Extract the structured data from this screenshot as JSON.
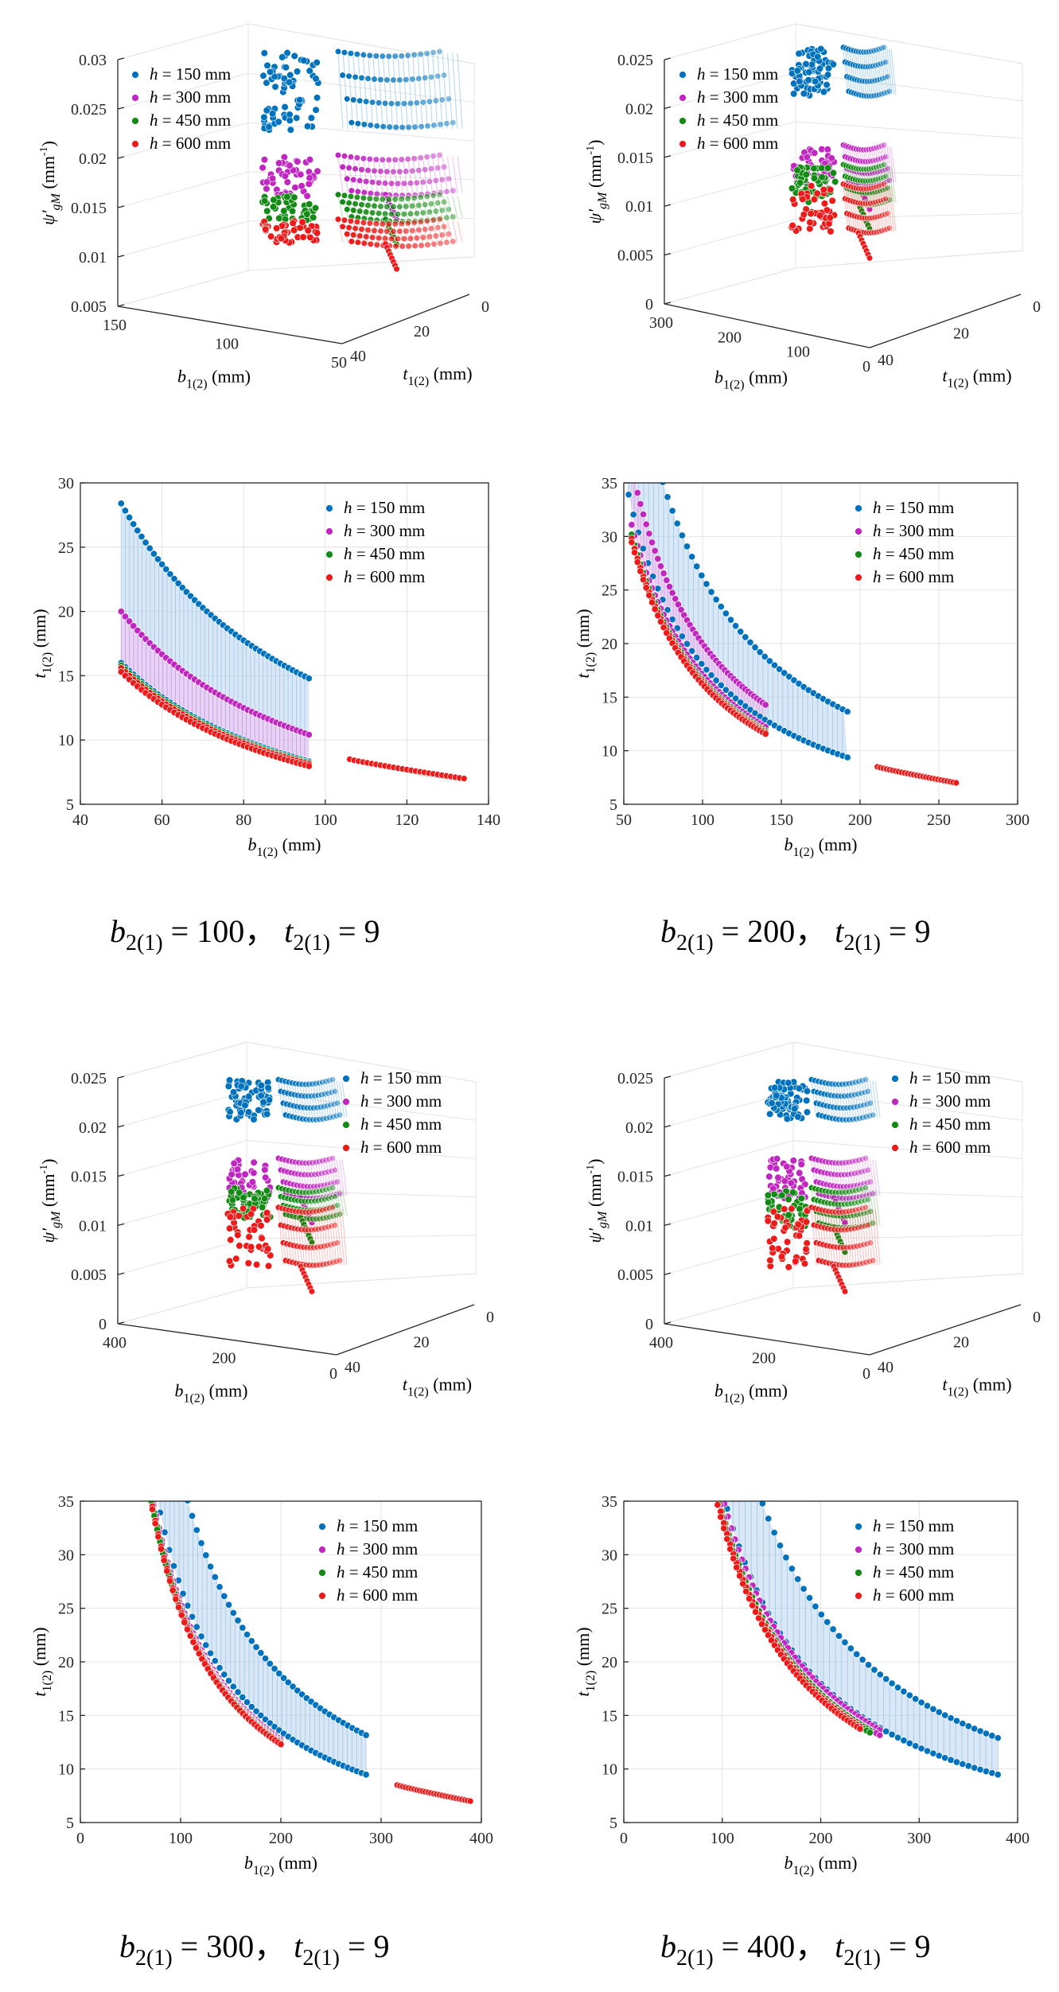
{
  "colors": {
    "c150": "#0072BD",
    "c300": "#C026C0",
    "c450": "#138A13",
    "c600": "#EE1A1A",
    "fill150": "#b9d4ee",
    "fill300": "#f3c3f3",
    "fill450": "#cfe8cf",
    "fill600": "#f8c8c8"
  },
  "legend": [
    "h = 150 mm",
    "h = 300 mm",
    "h = 450 mm",
    "h = 600 mm"
  ],
  "legend_parts": [
    {
      "sym": "h",
      "rest": " = 150 mm"
    },
    {
      "sym": "h",
      "rest": " = 300 mm"
    },
    {
      "sym": "h",
      "rest": " = 450 mm"
    },
    {
      "sym": "h",
      "rest": " = 600 mm"
    }
  ],
  "captions": [
    {
      "b": "b",
      "bsub": "2(1)",
      "bval": "= 100，",
      "t": "t",
      "tsub": "2(1)",
      "tval": "= 9"
    },
    {
      "b": "b",
      "bsub": "2(1)",
      "bval": "= 200，",
      "t": "t",
      "tsub": "2(1)",
      "tval": "= 9"
    },
    {
      "b": "b",
      "bsub": "2(1)",
      "bval": "= 300，",
      "t": "t",
      "tsub": "2(1)",
      "tval": "= 9"
    },
    {
      "b": "b",
      "bsub": "2(1)",
      "bval": "= 400，",
      "t": "t",
      "tsub": "2(1)",
      "tval": "= 9"
    }
  ],
  "chart_data": [
    {
      "type": "scatter3d",
      "panel": "b2=100 3D",
      "zlabel": "ψ′gM (mm⁻¹)",
      "xlabel": "b1(2) (mm)",
      "ylabel": "t1(2) (mm)",
      "z_ticks": [
        "0.005",
        "0.01",
        "0.015",
        "0.02",
        "0.025",
        "0.03"
      ],
      "zlim": [
        0.005,
        0.03
      ],
      "b_ticks": [
        "150",
        "100",
        "50"
      ],
      "t_ticks": [
        "40",
        "20",
        "0"
      ],
      "series": [
        {
          "name": "h = 150 mm",
          "z_range": [
            0.02,
            0.028
          ],
          "b_range": [
            50,
            135
          ]
        },
        {
          "name": "h = 300 mm",
          "z_range": [
            0.0135,
            0.0175
          ],
          "b_range": [
            50,
            135
          ]
        },
        {
          "name": "h = 450 mm",
          "z_range": [
            0.011,
            0.0135
          ],
          "b_range": [
            50,
            135
          ]
        },
        {
          "name": "h = 600 mm",
          "z_range": [
            0.0085,
            0.011
          ],
          "b_range": [
            50,
            135
          ]
        }
      ]
    },
    {
      "type": "scatter3d",
      "panel": "b2=200 3D",
      "zlabel": "ψ′gM (mm⁻¹)",
      "xlabel": "b1(2) (mm)",
      "ylabel": "t1(2) (mm)",
      "z_ticks": [
        "0",
        "0.005",
        "0.01",
        "0.015",
        "0.02",
        "0.025"
      ],
      "zlim": [
        0,
        0.025
      ],
      "b_ticks": [
        "300",
        "200",
        "100",
        "0"
      ],
      "t_ticks": [
        "40",
        "20",
        "0"
      ],
      "series": [
        {
          "name": "h = 150 mm",
          "z_range": [
            0.018,
            0.023
          ],
          "b_range": [
            50,
            260
          ]
        },
        {
          "name": "h = 300 mm",
          "z_range": [
            0.009,
            0.013
          ],
          "b_range": [
            50,
            260
          ]
        },
        {
          "name": "h = 450 mm",
          "z_range": [
            0.007,
            0.011
          ],
          "b_range": [
            50,
            260
          ]
        },
        {
          "name": "h = 600 mm",
          "z_range": [
            0.004,
            0.009
          ],
          "b_range": [
            50,
            260
          ]
        }
      ]
    },
    {
      "type": "scatter",
      "panel": "b2=100 2D",
      "xlabel": "b1(2) (mm)",
      "ylabel": "t1(2) (mm)",
      "xlim": [
        40,
        140
      ],
      "ylim": [
        5,
        30
      ],
      "x_ticks": [
        40,
        60,
        80,
        100,
        120,
        140
      ],
      "y_ticks": [
        5,
        10,
        15,
        20,
        25,
        30
      ],
      "series": [
        {
          "name": "h = 150 mm",
          "upper_tb": 1420,
          "lower_tb": 800,
          "x_range": [
            50,
            96
          ],
          "tail": [
            106,
            132
          ]
        },
        {
          "name": "h = 300 mm",
          "upper_tb": 1000,
          "lower_tb": 785,
          "x_range": [
            50,
            96
          ],
          "tail": [
            106,
            133
          ]
        },
        {
          "name": "h = 450 mm",
          "upper_tb": 790,
          "lower_tb": 770,
          "x_range": [
            50,
            96
          ],
          "tail": [
            106,
            133
          ]
        },
        {
          "name": "h = 600 mm",
          "upper_tb": 780,
          "lower_tb": 765,
          "x_range": [
            50,
            96
          ],
          "tail": [
            106,
            134
          ]
        }
      ]
    },
    {
      "type": "scatter",
      "panel": "b2=200 2D",
      "xlabel": "b1(2) (mm)",
      "ylabel": "t1(2) (mm)",
      "xlim": [
        50,
        300
      ],
      "ylim": [
        5,
        35
      ],
      "x_ticks": [
        50,
        100,
        150,
        200,
        250,
        300
      ],
      "y_ticks": [
        5,
        10,
        15,
        20,
        25,
        30,
        35
      ],
      "series": [
        {
          "name": "h = 150 mm",
          "upper_tb": 2620,
          "lower_tb": 1800,
          "x_range": [
            50,
            192
          ],
          "tail": [
            211,
            258
          ]
        },
        {
          "name": "h = 300 mm",
          "upper_tb": 2000,
          "lower_tb": 1710,
          "x_range": [
            55,
            140
          ],
          "tail": [
            211,
            260
          ]
        },
        {
          "name": "h = 450 mm",
          "upper_tb": 1660,
          "lower_tb": 1640,
          "x_range": [
            55,
            140
          ],
          "tail": [
            211,
            260
          ]
        },
        {
          "name": "h = 600 mm",
          "upper_tb": 1640,
          "lower_tb": 1620,
          "x_range": [
            55,
            140
          ],
          "tail": [
            211,
            261
          ]
        }
      ]
    },
    {
      "type": "scatter3d",
      "panel": "b2=300 3D",
      "zlabel": "ψ′gM (mm⁻¹)",
      "xlabel": "b1(2) (mm)",
      "ylabel": "t1(2) (mm)",
      "z_ticks": [
        "0",
        "0.005",
        "0.01",
        "0.015",
        "0.02",
        "0.025"
      ],
      "zlim": [
        0,
        0.025
      ],
      "b_ticks": [
        "400",
        "200",
        "0"
      ],
      "t_ticks": [
        "40",
        "20",
        "0"
      ],
      "series": [
        {
          "name": "h = 150 mm",
          "z_range": [
            0.018,
            0.022
          ],
          "b_range": [
            60,
            390
          ]
        },
        {
          "name": "h = 300 mm",
          "z_range": [
            0.01,
            0.014
          ],
          "b_range": [
            60,
            390
          ]
        },
        {
          "name": "h = 450 mm",
          "z_range": [
            0.008,
            0.011
          ],
          "b_range": [
            60,
            390
          ]
        },
        {
          "name": "h = 600 mm",
          "z_range": [
            0.003,
            0.009
          ],
          "b_range": [
            60,
            390
          ]
        }
      ]
    },
    {
      "type": "scatter3d",
      "panel": "b2=400 3D",
      "zlabel": "ψ′gM (mm⁻¹)",
      "xlabel": "b1(2) (mm)",
      "ylabel": "t1(2) (mm)",
      "z_ticks": [
        "0",
        "0.005",
        "0.01",
        "0.015",
        "0.02",
        "0.025"
      ],
      "zlim": [
        0,
        0.025
      ],
      "b_ticks": [
        "400",
        "200",
        "0"
      ],
      "t_ticks": [
        "40",
        "20",
        "0"
      ],
      "series": [
        {
          "name": "h = 150 mm",
          "z_range": [
            0.018,
            0.022
          ],
          "b_range": [
            90,
            380
          ]
        },
        {
          "name": "h = 300 mm",
          "z_range": [
            0.01,
            0.014
          ],
          "b_range": [
            90,
            380
          ]
        },
        {
          "name": "h = 450 mm",
          "z_range": [
            0.007,
            0.011
          ],
          "b_range": [
            90,
            380
          ]
        },
        {
          "name": "h = 600 mm",
          "z_range": [
            0.003,
            0.009
          ],
          "b_range": [
            90,
            380
          ]
        }
      ]
    },
    {
      "type": "scatter",
      "panel": "b2=300 2D",
      "xlabel": "b1(2) (mm)",
      "ylabel": "t1(2) (mm)",
      "xlim": [
        0,
        400
      ],
      "ylim": [
        5,
        35
      ],
      "x_ticks": [
        0,
        100,
        200,
        300,
        400
      ],
      "y_ticks": [
        5,
        10,
        15,
        20,
        25,
        30,
        35
      ],
      "series": [
        {
          "name": "h = 150 mm",
          "upper_tb": 3750,
          "lower_tb": 2700,
          "x_range": [
            75,
            285
          ],
          "tail": [
            316,
            385
          ]
        },
        {
          "name": "h = 300 mm",
          "upper_tb": 2550,
          "lower_tb": 2520,
          "x_range": [
            70,
            200
          ],
          "tail": [
            316,
            388
          ]
        },
        {
          "name": "h = 450 mm",
          "upper_tb": 2500,
          "lower_tb": 2480,
          "x_range": [
            68,
            200
          ],
          "tail": [
            316,
            388
          ]
        },
        {
          "name": "h = 600 mm",
          "upper_tb": 2480,
          "lower_tb": 2460,
          "x_range": [
            66,
            200
          ],
          "tail": [
            316,
            389
          ]
        }
      ]
    },
    {
      "type": "scatter",
      "panel": "b2=400 2D",
      "xlabel": "b1(2) (mm)",
      "ylabel": "t1(2) (mm)",
      "xlim": [
        0,
        400
      ],
      "ylim": [
        5,
        35
      ],
      "x_ticks": [
        0,
        100,
        200,
        300,
        400
      ],
      "y_ticks": [
        5,
        10,
        15,
        20,
        25,
        30,
        35
      ],
      "series": [
        {
          "name": "h = 150 mm",
          "upper_tb": 4900,
          "lower_tb": 3600,
          "x_range": [
            105,
            380
          ],
          "tail": null
        },
        {
          "name": "h = 300 mm",
          "upper_tb": 3550,
          "lower_tb": 3420,
          "x_range": [
            95,
            260
          ],
          "tail": null
        },
        {
          "name": "h = 450 mm",
          "upper_tb": 3400,
          "lower_tb": 3350,
          "x_range": [
            93,
            250
          ],
          "tail": null
        },
        {
          "name": "h = 600 mm",
          "upper_tb": 3350,
          "lower_tb": 3300,
          "x_range": [
            92,
            240
          ],
          "tail": null
        }
      ]
    }
  ]
}
